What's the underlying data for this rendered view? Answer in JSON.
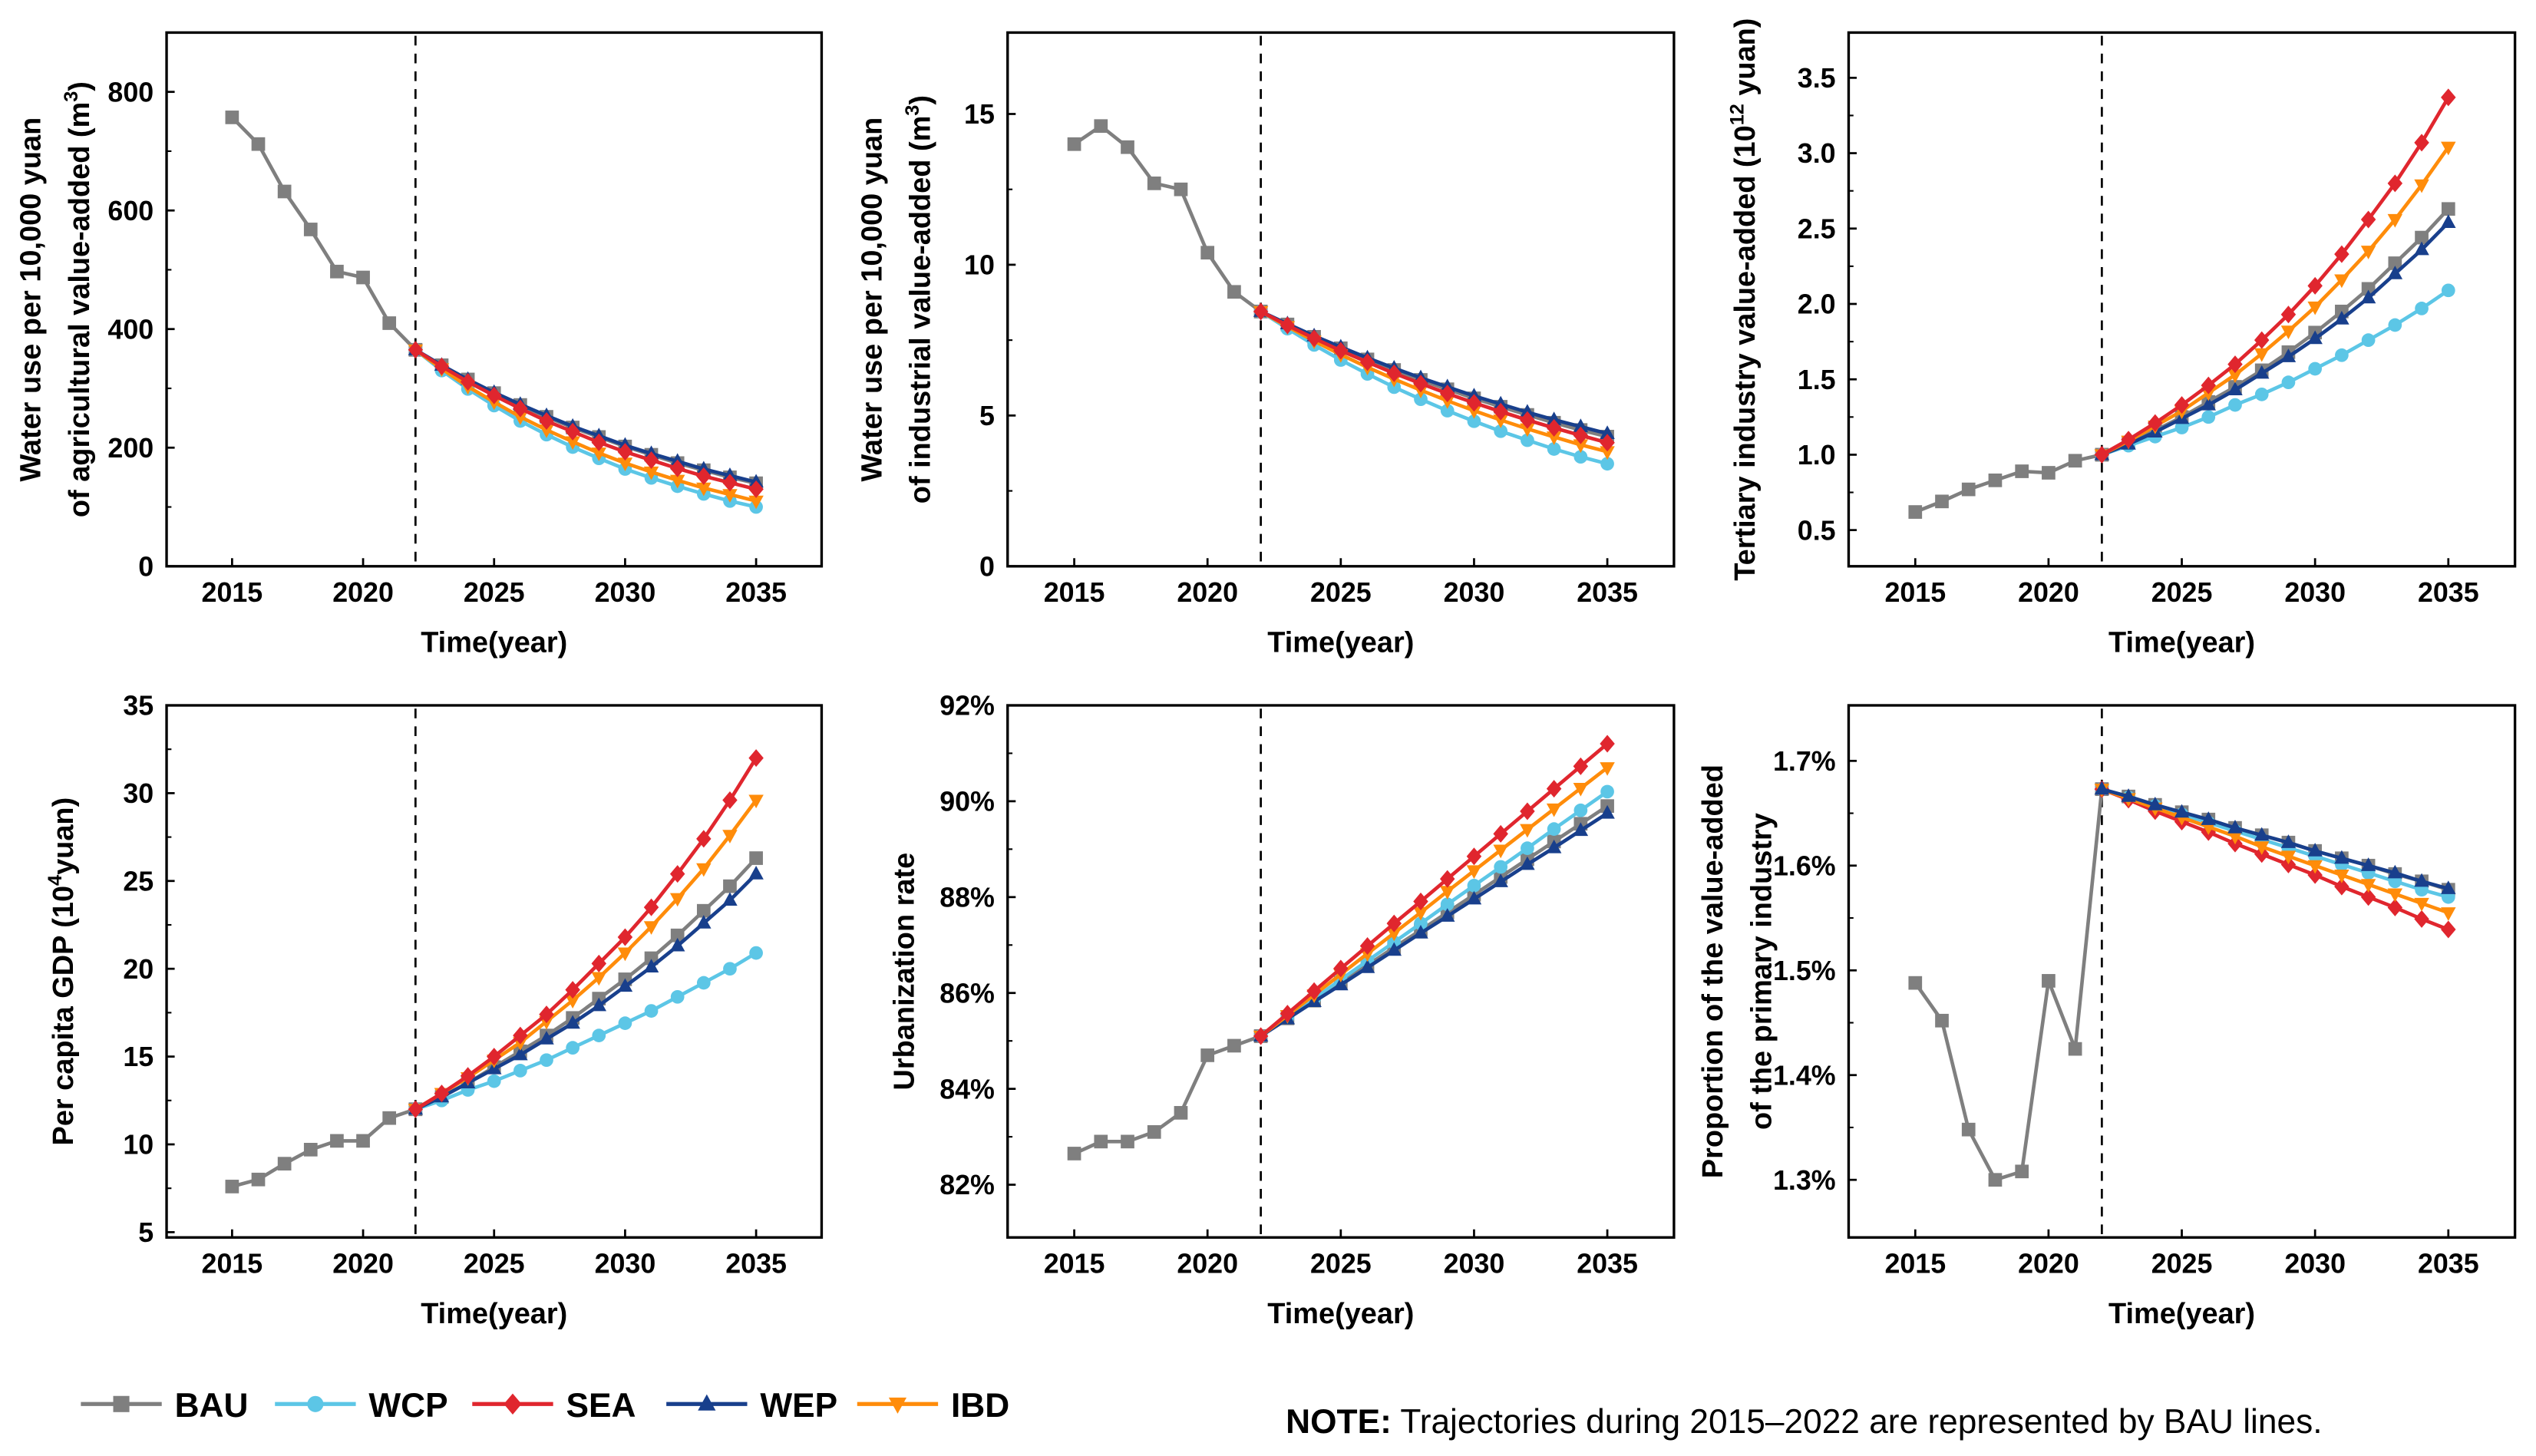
{
  "colors": {
    "BAU": "#7f7f7f",
    "WCP": "#5cc6e6",
    "SEA": "#e0262e",
    "WEP": "#183f8c",
    "IBD": "#ff8c0a"
  },
  "legend": [
    {
      "name": "BAU",
      "marker": "square"
    },
    {
      "name": "WCP",
      "marker": "circle"
    },
    {
      "name": "SEA",
      "marker": "diamond"
    },
    {
      "name": "WEP",
      "marker": "triangle-up"
    },
    {
      "name": "IBD",
      "marker": "triangle-down"
    }
  ],
  "note": {
    "bold": "NOTE:",
    "text": " Trajectories during 2015–2022 are represented by BAU lines."
  },
  "chart_data": [
    {
      "type": "line",
      "title": "",
      "xlabel": "Time(year)",
      "ylabel": [
        [
          "Water use per 10,000 yuan"
        ],
        [
          "of agricultural value-added (m",
          "3",
          ")"
        ]
      ],
      "xlim": [
        2012.5,
        2037.5
      ],
      "xticks": [
        2015,
        2020,
        2025,
        2030,
        2035
      ],
      "ylim": [
        0,
        900
      ],
      "yticks": [
        0,
        200,
        400,
        600,
        800
      ],
      "yticklabels": [
        "0",
        "200",
        "400",
        "600",
        "800"
      ],
      "divider_year": 2022,
      "history": {
        "x": [
          2015,
          2016,
          2017,
          2018,
          2019,
          2020,
          2021,
          2022
        ],
        "BAU": [
          757,
          712,
          632,
          568,
          497,
          487,
          410,
          365
        ]
      },
      "projection_x": [
        2022,
        2023,
        2024,
        2025,
        2026,
        2027,
        2028,
        2029,
        2030,
        2031,
        2032,
        2033,
        2034,
        2035
      ],
      "series": [
        {
          "name": "BAU",
          "values": [
            365,
            339,
            315,
            292,
            272,
            252,
            234,
            218,
            202,
            188,
            174,
            162,
            150,
            140
          ]
        },
        {
          "name": "WCP",
          "values": [
            365,
            330,
            299,
            271,
            245,
            222,
            201,
            182,
            164,
            149,
            135,
            122,
            110,
            100
          ]
        },
        {
          "name": "WEP",
          "values": [
            365,
            339,
            315,
            293,
            273,
            254,
            236,
            220,
            204,
            190,
            177,
            164,
            153,
            142
          ]
        },
        {
          "name": "IBD",
          "values": [
            365,
            333,
            303,
            277,
            252,
            230,
            210,
            191,
            174,
            159,
            145,
            132,
            121,
            110
          ]
        },
        {
          "name": "SEA",
          "values": [
            365,
            337,
            311,
            288,
            266,
            245,
            227,
            209,
            193,
            179,
            165,
            152,
            141,
            130
          ]
        }
      ]
    },
    {
      "type": "line",
      "title": "",
      "xlabel": "Time(year)",
      "ylabel": [
        [
          "Water use per 10,000 yuan"
        ],
        [
          "of industrial value-added (m",
          "3",
          ")"
        ]
      ],
      "xlim": [
        2012.5,
        2037.5
      ],
      "xticks": [
        2015,
        2020,
        2025,
        2030,
        2035
      ],
      "ylim": [
        0,
        17.7
      ],
      "yticks": [
        0,
        5,
        10,
        15
      ],
      "yticklabels": [
        "0",
        "5",
        "10",
        "15"
      ],
      "divider_year": 2022,
      "history": {
        "x": [
          2015,
          2016,
          2017,
          2018,
          2019,
          2020,
          2021,
          2022
        ],
        "BAU": [
          14.0,
          14.6,
          13.9,
          12.7,
          12.5,
          10.4,
          9.1,
          8.45
        ]
      },
      "projection_x": [
        2022,
        2023,
        2024,
        2025,
        2026,
        2027,
        2028,
        2029,
        2030,
        2031,
        2032,
        2033,
        2034,
        2035
      ],
      "series": [
        {
          "name": "BAU",
          "values": [
            8.45,
            8.02,
            7.61,
            7.23,
            6.86,
            6.51,
            6.18,
            5.87,
            5.57,
            5.29,
            5.02,
            4.76,
            4.52,
            4.3
          ]
        },
        {
          "name": "WCP",
          "values": [
            8.45,
            7.88,
            7.34,
            6.84,
            6.38,
            5.94,
            5.54,
            5.16,
            4.81,
            4.48,
            4.18,
            3.89,
            3.63,
            3.4
          ]
        },
        {
          "name": "WEP",
          "values": [
            8.45,
            8.04,
            7.64,
            7.27,
            6.91,
            6.57,
            6.25,
            5.95,
            5.65,
            5.38,
            5.11,
            4.86,
            4.63,
            4.4
          ]
        },
        {
          "name": "IBD",
          "values": [
            8.45,
            7.95,
            7.47,
            7.02,
            6.6,
            6.21,
            5.84,
            5.49,
            5.16,
            4.85,
            4.56,
            4.29,
            4.03,
            3.8
          ]
        },
        {
          "name": "SEA",
          "values": [
            8.45,
            7.99,
            7.56,
            7.15,
            6.77,
            6.4,
            6.06,
            5.73,
            5.42,
            5.13,
            4.85,
            4.59,
            4.34,
            4.1
          ]
        }
      ]
    },
    {
      "type": "line",
      "title": "",
      "xlabel": "Time(year)",
      "ylabel": [
        [
          "Tertiary industry value-added (10",
          "12",
          " yuan)"
        ]
      ],
      "xlim": [
        2012.5,
        2037.5
      ],
      "xticks": [
        2015,
        2020,
        2025,
        2030,
        2035
      ],
      "ylim": [
        0.26,
        3.8
      ],
      "yticks": [
        0.5,
        1.0,
        1.5,
        2.0,
        2.5,
        3.0,
        3.5
      ],
      "yticklabels": [
        "0.5",
        "1.0",
        "1.5",
        "2.0",
        "2.5",
        "3.0",
        "3.5"
      ],
      "divider_year": 2022,
      "history": {
        "x": [
          2015,
          2016,
          2017,
          2018,
          2019,
          2020,
          2021,
          2022
        ],
        "BAU": [
          0.62,
          0.69,
          0.77,
          0.83,
          0.89,
          0.88,
          0.96,
          1.0
        ]
      },
      "projection_x": [
        2022,
        2023,
        2024,
        2025,
        2026,
        2027,
        2028,
        2029,
        2030,
        2031,
        2032,
        2033,
        2034,
        2035
      ],
      "series": [
        {
          "name": "BAU",
          "values": [
            1.0,
            1.08,
            1.16,
            1.25,
            1.35,
            1.45,
            1.56,
            1.68,
            1.81,
            1.95,
            2.1,
            2.27,
            2.44,
            2.63
          ]
        },
        {
          "name": "WCP",
          "values": [
            1.0,
            1.06,
            1.12,
            1.18,
            1.25,
            1.33,
            1.4,
            1.48,
            1.57,
            1.66,
            1.76,
            1.86,
            1.97,
            2.09
          ]
        },
        {
          "name": "WEP",
          "values": [
            1.0,
            1.07,
            1.15,
            1.24,
            1.33,
            1.43,
            1.54,
            1.65,
            1.77,
            1.9,
            2.04,
            2.2,
            2.36,
            2.54
          ]
        },
        {
          "name": "IBD",
          "values": [
            1.0,
            1.09,
            1.19,
            1.29,
            1.41,
            1.53,
            1.67,
            1.82,
            1.98,
            2.16,
            2.35,
            2.56,
            2.79,
            3.04
          ]
        },
        {
          "name": "SEA",
          "values": [
            1.0,
            1.1,
            1.21,
            1.33,
            1.46,
            1.6,
            1.76,
            1.93,
            2.12,
            2.33,
            2.56,
            2.8,
            3.07,
            3.37
          ]
        }
      ]
    },
    {
      "type": "line",
      "title": "",
      "xlabel": "Time(year)",
      "ylabel": [
        [
          "Per capita GDP (10",
          "4",
          "yuan)"
        ]
      ],
      "xlim": [
        2012.5,
        2037.5
      ],
      "xticks": [
        2015,
        2020,
        2025,
        2030,
        2035
      ],
      "ylim": [
        4.7,
        35
      ],
      "yticks": [
        5,
        10,
        15,
        20,
        25,
        30,
        35
      ],
      "yticklabels": [
        "5",
        "10",
        "15",
        "20",
        "25",
        "30",
        "35"
      ],
      "divider_year": 2022,
      "history": {
        "x": [
          2015,
          2016,
          2017,
          2018,
          2019,
          2020,
          2021,
          2022
        ],
        "BAU": [
          7.6,
          8.0,
          8.9,
          9.7,
          10.2,
          10.2,
          11.5,
          12.0
        ]
      },
      "projection_x": [
        2022,
        2023,
        2024,
        2025,
        2026,
        2027,
        2028,
        2029,
        2030,
        2031,
        2032,
        2033,
        2034,
        2035
      ],
      "series": [
        {
          "name": "BAU",
          "values": [
            12,
            12.7,
            13.5,
            14.4,
            15.3,
            16.2,
            17.2,
            18.3,
            19.4,
            20.6,
            21.9,
            23.3,
            24.7,
            26.3
          ]
        },
        {
          "name": "WCP",
          "values": [
            12,
            12.5,
            13.1,
            13.6,
            14.2,
            14.8,
            15.5,
            16.2,
            16.9,
            17.6,
            18.4,
            19.2,
            20.0,
            20.9
          ]
        },
        {
          "name": "WEP",
          "values": [
            12,
            12.7,
            13.5,
            14.3,
            15.1,
            16.0,
            16.9,
            17.9,
            19.0,
            20.1,
            21.3,
            22.6,
            23.9,
            25.4
          ]
        },
        {
          "name": "IBD",
          "values": [
            12,
            12.9,
            13.8,
            14.8,
            15.8,
            17.0,
            18.2,
            19.5,
            20.9,
            22.4,
            24.0,
            25.7,
            27.6,
            29.6
          ]
        },
        {
          "name": "SEA",
          "values": [
            12,
            12.9,
            13.9,
            15.0,
            16.2,
            17.4,
            18.8,
            20.3,
            21.8,
            23.5,
            25.4,
            27.4,
            29.6,
            32.0
          ]
        }
      ]
    },
    {
      "type": "line",
      "title": "",
      "xlabel": "Time(year)",
      "ylabel": [
        [
          "Urbanization rate"
        ]
      ],
      "xlim": [
        2012.5,
        2037.5
      ],
      "xticks": [
        2015,
        2020,
        2025,
        2030,
        2035
      ],
      "ylim": [
        80.9,
        92
      ],
      "yticks": [
        82,
        84,
        86,
        88,
        90,
        92
      ],
      "yticklabels": [
        "82%",
        "84%",
        "86%",
        "88%",
        "90%",
        "92%"
      ],
      "divider_year": 2022,
      "history": {
        "x": [
          2015,
          2016,
          2017,
          2018,
          2019,
          2020,
          2021,
          2022
        ],
        "BAU": [
          82.65,
          82.9,
          82.9,
          83.1,
          83.5,
          84.7,
          84.9,
          85.1
        ]
      },
      "projection_x": [
        2022,
        2023,
        2024,
        2025,
        2026,
        2027,
        2028,
        2029,
        2030,
        2031,
        2032,
        2033,
        2034,
        2035
      ],
      "series": [
        {
          "name": "BAU",
          "values": [
            85.1,
            85.47,
            85.84,
            86.21,
            86.58,
            86.95,
            87.31,
            87.68,
            88.05,
            88.42,
            88.79,
            89.16,
            89.53,
            89.9
          ]
        },
        {
          "name": "WCP",
          "values": [
            85.1,
            85.49,
            85.88,
            86.28,
            86.67,
            87.06,
            87.45,
            87.85,
            88.24,
            88.63,
            89.02,
            89.42,
            89.81,
            90.2
          ]
        },
        {
          "name": "WEP",
          "values": [
            85.1,
            85.46,
            85.82,
            86.17,
            86.53,
            86.89,
            87.25,
            87.6,
            87.96,
            88.32,
            88.68,
            89.03,
            89.39,
            89.75
          ]
        },
        {
          "name": "IBD",
          "values": [
            85.1,
            85.53,
            85.96,
            86.39,
            86.82,
            87.25,
            87.68,
            88.12,
            88.55,
            88.98,
            89.41,
            89.84,
            90.27,
            90.7
          ]
        },
        {
          "name": "SEA",
          "values": [
            85.1,
            85.57,
            86.04,
            86.51,
            86.98,
            87.45,
            87.91,
            88.38,
            88.85,
            89.32,
            89.79,
            90.26,
            90.73,
            91.2
          ]
        }
      ]
    },
    {
      "type": "line",
      "title": "",
      "xlabel": "Time(year)",
      "ylabel": [
        [
          "Proportion of the value-added"
        ],
        [
          "of the primary industry"
        ]
      ],
      "xlim": [
        2012.5,
        2037.5
      ],
      "xticks": [
        2015,
        2020,
        2025,
        2030,
        2035
      ],
      "ylim": [
        1.245,
        1.753
      ],
      "yticks": [
        1.3,
        1.4,
        1.5,
        1.6,
        1.7
      ],
      "yticklabels": [
        "1.3%",
        "1.4%",
        "1.5%",
        "1.6%",
        "1.7%"
      ],
      "divider_year": 2022,
      "history": {
        "x": [
          2015,
          2016,
          2017,
          2018,
          2019,
          2020,
          2021,
          2022
        ],
        "BAU": [
          1.488,
          1.452,
          1.348,
          1.3,
          1.308,
          1.49,
          1.425,
          1.673
        ]
      },
      "projection_x": [
        2022,
        2023,
        2024,
        2025,
        2026,
        2027,
        2028,
        2029,
        2030,
        2031,
        2032,
        2033,
        2034,
        2035
      ],
      "series": [
        {
          "name": "BAU",
          "values": [
            1.673,
            1.666,
            1.658,
            1.651,
            1.644,
            1.636,
            1.629,
            1.622,
            1.614,
            1.607,
            1.6,
            1.592,
            1.585,
            1.577
          ]
        },
        {
          "name": "WCP",
          "values": [
            1.673,
            1.665,
            1.657,
            1.649,
            1.641,
            1.633,
            1.625,
            1.617,
            1.609,
            1.601,
            1.593,
            1.585,
            1.577,
            1.57
          ]
        },
        {
          "name": "SEA",
          "values": [
            1.673,
            1.663,
            1.652,
            1.642,
            1.632,
            1.621,
            1.611,
            1.601,
            1.591,
            1.58,
            1.57,
            1.56,
            1.549,
            1.539
          ]
        },
        {
          "name": "IBD",
          "values": [
            1.673,
            1.664,
            1.655,
            1.646,
            1.637,
            1.628,
            1.618,
            1.609,
            1.6,
            1.591,
            1.582,
            1.573,
            1.564,
            1.555
          ]
        },
        {
          "name": "WEP",
          "values": [
            1.673,
            1.666,
            1.658,
            1.651,
            1.644,
            1.636,
            1.629,
            1.622,
            1.614,
            1.607,
            1.6,
            1.593,
            1.585,
            1.578
          ]
        }
      ]
    }
  ]
}
